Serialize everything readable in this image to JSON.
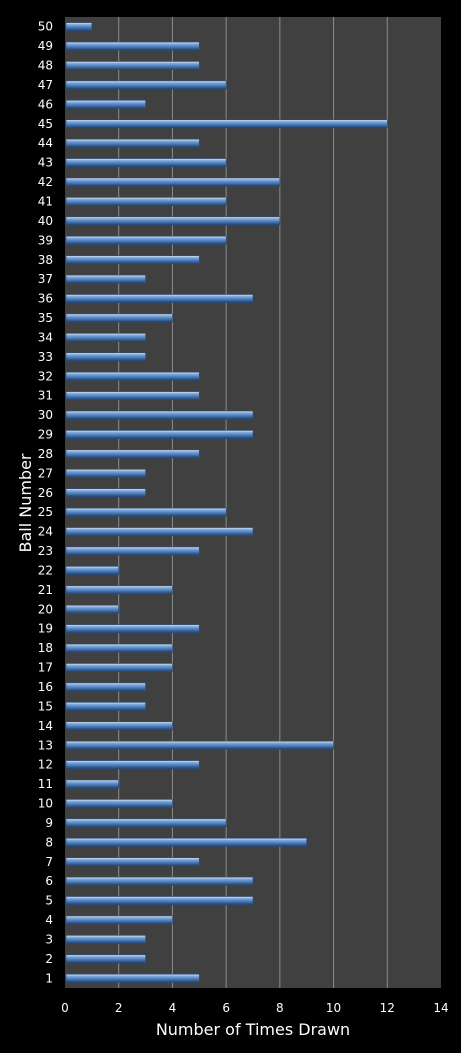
{
  "chart_data": {
    "type": "bar",
    "orientation": "horizontal",
    "xlabel": "Number of Times Drawn",
    "ylabel": "Ball Number",
    "xlim": [
      0,
      14
    ],
    "x_ticks": [
      0,
      2,
      4,
      6,
      8,
      10,
      12,
      14
    ],
    "grid": "vertical",
    "categories": [
      "1",
      "2",
      "3",
      "4",
      "5",
      "6",
      "7",
      "8",
      "9",
      "10",
      "11",
      "12",
      "13",
      "14",
      "15",
      "16",
      "17",
      "18",
      "19",
      "20",
      "21",
      "22",
      "23",
      "24",
      "25",
      "26",
      "27",
      "28",
      "29",
      "30",
      "31",
      "32",
      "33",
      "34",
      "35",
      "36",
      "37",
      "38",
      "39",
      "40",
      "41",
      "42",
      "43",
      "44",
      "45",
      "46",
      "47",
      "48",
      "49",
      "50"
    ],
    "values": [
      5,
      3,
      3,
      4,
      7,
      7,
      5,
      9,
      6,
      4,
      2,
      5,
      10,
      4,
      3,
      3,
      4,
      4,
      5,
      2,
      4,
      2,
      5,
      7,
      6,
      3,
      3,
      5,
      7,
      7,
      5,
      5,
      3,
      3,
      4,
      7,
      3,
      5,
      6,
      8,
      6,
      8,
      6,
      5,
      12,
      3,
      6,
      5,
      5,
      1
    ],
    "colors": {
      "background": "#000000",
      "plot_area": "#404040",
      "gridline": "#8c8c8c",
      "bar": "#4f81bd",
      "text": "#ffffff"
    }
  }
}
